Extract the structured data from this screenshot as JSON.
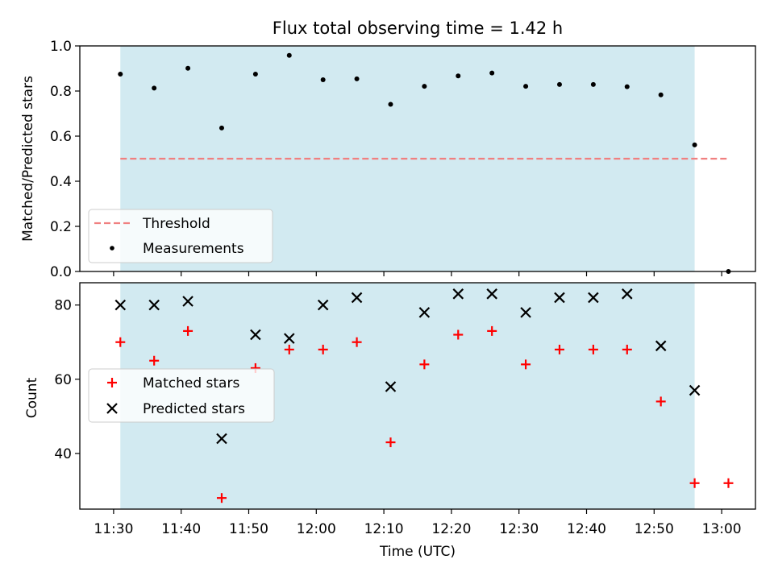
{
  "figure": {
    "title": "Flux total observing time = 1.42 h",
    "xlabel": "Time (UTC)"
  },
  "colors": {
    "shade": "#add8e6",
    "threshold": "#f08080",
    "measurement": "#000000",
    "matched": "#ff0000",
    "predicted": "#000000"
  },
  "chart_data": [
    {
      "type": "scatter",
      "panel": "top",
      "ylabel": "Matched/Predicted stars",
      "xlim": [
        "11:25",
        "13:05"
      ],
      "ylim": [
        0,
        1.0
      ],
      "yticks": [
        "0.0",
        "0.2",
        "0.4",
        "0.6",
        "0.8",
        "1.0"
      ],
      "xticks": [
        "11:30",
        "11:40",
        "11:50",
        "12:00",
        "12:10",
        "12:20",
        "12:30",
        "12:40",
        "12:50",
        "13:00"
      ],
      "shaded_span": [
        "11:31",
        "12:56"
      ],
      "legend": {
        "placement": "lower left",
        "entries": [
          "Threshold",
          "Measurements"
        ]
      },
      "threshold": {
        "name": "Threshold",
        "y": 0.5,
        "x": [
          "11:31",
          "13:01"
        ]
      },
      "series": [
        {
          "name": "Measurements",
          "x": [
            "11:31",
            "11:36",
            "11:41",
            "11:46",
            "11:51",
            "11:56",
            "12:01",
            "12:06",
            "12:11",
            "12:16",
            "12:21",
            "12:26",
            "12:31",
            "12:36",
            "12:41",
            "12:46",
            "12:51",
            "12:56",
            "13:01"
          ],
          "y": [
            0.875,
            0.813,
            0.901,
            0.636,
            0.875,
            0.958,
            0.85,
            0.854,
            0.741,
            0.821,
            0.867,
            0.88,
            0.821,
            0.829,
            0.829,
            0.819,
            0.783,
            0.561,
            0.0
          ]
        }
      ]
    },
    {
      "type": "scatter",
      "panel": "bottom",
      "ylabel": "Count",
      "xlabel": "Time (UTC)",
      "xlim": [
        "11:25",
        "13:05"
      ],
      "ylim": [
        25,
        86
      ],
      "yticks": [
        "40",
        "60",
        "80"
      ],
      "xticks": [
        "11:30",
        "11:40",
        "11:50",
        "12:00",
        "12:10",
        "12:20",
        "12:30",
        "12:40",
        "12:50",
        "13:00"
      ],
      "shaded_span": [
        "11:31",
        "12:56"
      ],
      "legend": {
        "placement": "center left",
        "entries": [
          "Matched stars",
          "Predicted stars"
        ]
      },
      "series": [
        {
          "name": "Matched stars",
          "x": [
            "11:31",
            "11:36",
            "11:41",
            "11:46",
            "11:51",
            "11:56",
            "12:01",
            "12:06",
            "12:11",
            "12:16",
            "12:21",
            "12:26",
            "12:31",
            "12:36",
            "12:41",
            "12:46",
            "12:51",
            "12:56",
            "13:01"
          ],
          "y": [
            70,
            65,
            73,
            28,
            63,
            68,
            68,
            70,
            43,
            64,
            72,
            73,
            64,
            68,
            68,
            68,
            54,
            32,
            32
          ]
        },
        {
          "name": "Predicted stars",
          "x": [
            "11:31",
            "11:36",
            "11:41",
            "11:46",
            "11:51",
            "11:56",
            "12:01",
            "12:06",
            "12:11",
            "12:16",
            "12:21",
            "12:26",
            "12:31",
            "12:36",
            "12:41",
            "12:46",
            "12:51",
            "12:56"
          ],
          "y": [
            80,
            80,
            81,
            44,
            72,
            71,
            80,
            82,
            58,
            78,
            83,
            83,
            78,
            82,
            82,
            83,
            69,
            57
          ]
        }
      ]
    }
  ]
}
